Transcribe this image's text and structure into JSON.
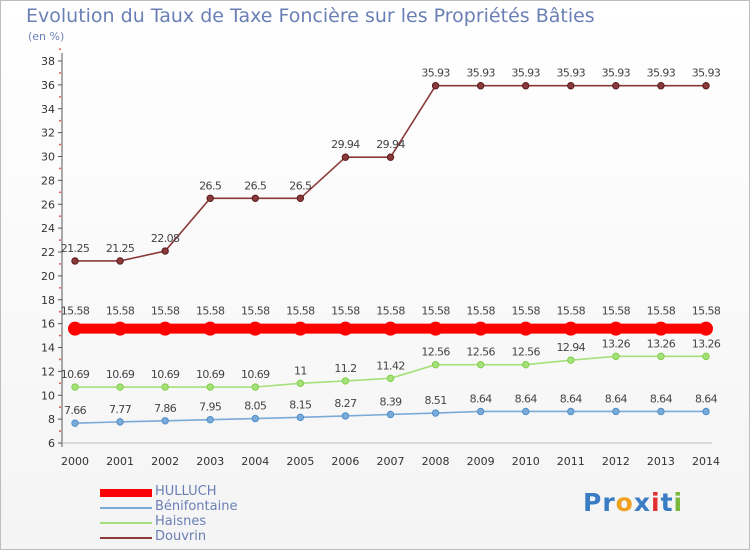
{
  "chart_data": {
    "type": "line",
    "title": "Evolution du Taux de Taxe Foncière sur les Propriétés Bâties",
    "subtitle": "(en %)",
    "categories": [
      "2000",
      "2001",
      "2002",
      "2003",
      "2004",
      "2005",
      "2006",
      "2007",
      "2008",
      "2009",
      "2010",
      "2011",
      "2012",
      "2013",
      "2014"
    ],
    "ylim": [
      6,
      38
    ],
    "yticks": [
      6,
      8,
      10,
      12,
      14,
      16,
      18,
      20,
      22,
      24,
      26,
      28,
      30,
      32,
      34,
      36,
      38
    ],
    "series": [
      {
        "name": "HULLUCH",
        "color": "#ff0000",
        "marker": "#ff0000",
        "thick": true,
        "values": [
          15.58,
          15.58,
          15.58,
          15.58,
          15.58,
          15.58,
          15.58,
          15.58,
          15.58,
          15.58,
          15.58,
          15.58,
          15.58,
          15.58,
          15.58
        ],
        "labels": [
          "15.58",
          "15.58",
          "15.58",
          "15.58",
          "15.58",
          "15.58",
          "15.58",
          "15.58",
          "15.58",
          "15.58",
          "15.58",
          "15.58",
          "15.58",
          "15.58",
          "15.58"
        ]
      },
      {
        "name": "Bénifontaine",
        "color": "#7aaad8",
        "marker": "#4f8fc9",
        "thick": false,
        "values": [
          7.66,
          7.77,
          7.86,
          7.95,
          8.05,
          8.15,
          8.27,
          8.39,
          8.51,
          8.64,
          8.64,
          8.64,
          8.64,
          8.64,
          8.64
        ],
        "labels": [
          "7.66",
          "7.77",
          "7.86",
          "7.95",
          "8.05",
          "8.15",
          "8.27",
          "8.39",
          "8.51",
          "8.64",
          "8.64",
          "8.64",
          "8.64",
          "8.64",
          "8.64"
        ]
      },
      {
        "name": "Haisnes",
        "color": "#a6e07a",
        "marker": "#7fcf4a",
        "thick": false,
        "values": [
          10.69,
          10.69,
          10.69,
          10.69,
          10.69,
          11,
          11.2,
          11.42,
          12.56,
          12.56,
          12.56,
          12.94,
          13.26,
          13.26,
          13.26
        ],
        "labels": [
          "10.69",
          "10.69",
          "10.69",
          "10.69",
          "10.69",
          "11",
          "11.2",
          "11.42",
          "12.56",
          "12.56",
          "12.56",
          "12.94",
          "13.26",
          "13.26",
          "13.26"
        ]
      },
      {
        "name": "Douvrin",
        "color": "#8a3a3a",
        "marker": "#5a1a1a",
        "thick": false,
        "values": [
          21.25,
          21.25,
          22.08,
          26.5,
          26.5,
          26.5,
          29.94,
          29.94,
          35.93,
          35.93,
          35.93,
          35.93,
          35.93,
          35.93,
          35.93
        ],
        "labels": [
          "21.25",
          "21.25",
          "22.08",
          "26.5",
          "26.5",
          "26.5",
          "29.94",
          "29.94",
          "35.93",
          "35.93",
          "35.93",
          "35.93",
          "35.93",
          "35.93",
          "35.93"
        ]
      }
    ],
    "grid": false,
    "legend_position": "bottom-left"
  },
  "brand": {
    "parts": [
      "Pr",
      "o",
      "x",
      "i",
      "t",
      "i"
    ],
    "colors": [
      "#3b7dc4",
      "#f0a020",
      "#3b7dc4",
      "#e03030",
      "#3b7dc4",
      "#7ab83a"
    ]
  }
}
